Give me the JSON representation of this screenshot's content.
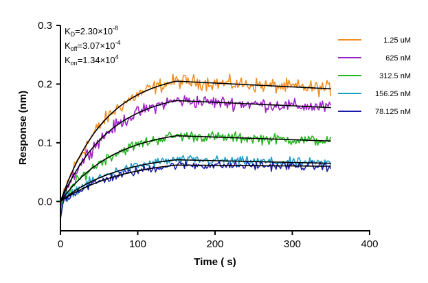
{
  "chart_data": {
    "type": "line",
    "xlabel": "Time ( s)",
    "ylabel": "Response (nm)",
    "xlim": [
      0,
      400
    ],
    "ylim": [
      -0.05,
      0.3
    ],
    "x_ticks": [
      0,
      100,
      200,
      300,
      400
    ],
    "y_ticks": [
      0.0,
      0.1,
      0.2,
      0.3
    ],
    "y_tick_labels": [
      "0.0",
      "0.1",
      "0.2",
      "0.3"
    ],
    "grid": false,
    "legend_position": "top-right",
    "association_end": 150,
    "time_end": 350,
    "kinetics": {
      "kd": {
        "main": "K",
        "sub": "D",
        "value": "=2.30×10",
        "exp": "-8"
      },
      "koff": {
        "main": "K",
        "sub": "off",
        "value": "=3.07×10",
        "exp": "-4"
      },
      "kon": {
        "main": "K",
        "sub": "on",
        "value": "=1.34×10",
        "exp": "4"
      }
    },
    "fit_color": "#000000",
    "series": [
      {
        "name": "1.25 uM",
        "color": "#F28C1E",
        "plateau": 0.205,
        "end": 0.192
      },
      {
        "name": "625 nM",
        "color": "#A020C8",
        "plateau": 0.172,
        "end": 0.16
      },
      {
        "name": "312.5 nM",
        "color": "#22B81E",
        "plateau": 0.112,
        "end": 0.103
      },
      {
        "name": "156.25 nM",
        "color": "#1E9CC8",
        "plateau": 0.071,
        "end": 0.065
      },
      {
        "name": "78.125 nM",
        "color": "#1C1CA8",
        "plateau": 0.062,
        "end": 0.06
      }
    ]
  }
}
